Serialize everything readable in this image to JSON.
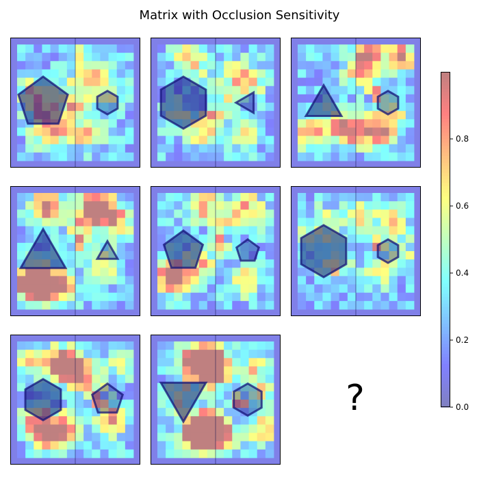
{
  "title": "Matrix with Occlusion Sensitivity",
  "chart_data": {
    "type": "heatmap",
    "title": "Matrix with Occlusion Sensitivity",
    "layout": "3x3 matrix grid, last cell missing",
    "grid_size": 14,
    "colormap": "jet",
    "overlay_alpha": 0.5,
    "colorbar": {
      "min": 0.0,
      "max": 1.0,
      "ticks": [
        0.0,
        0.2,
        0.4,
        0.6,
        0.8
      ],
      "tick_labels": [
        "0.0",
        "0.2",
        "0.4",
        "0.6",
        "0.8"
      ],
      "placement": "right"
    },
    "panels": [
      {
        "name": "panel-1",
        "left_shape": {
          "type": "pentagon",
          "size": "large"
        },
        "right_shape": {
          "type": "hexagon",
          "size": "small"
        },
        "hotspots": [
          [
            6,
            5,
            0.32
          ],
          [
            2,
            6,
            0.3
          ],
          [
            9,
            5,
            0.28
          ],
          [
            3,
            8,
            0.45
          ],
          [
            8,
            10,
            0.5
          ],
          [
            7,
            1,
            0.22
          ],
          [
            5,
            10,
            0.28
          ],
          [
            9,
            3,
            0.26
          ],
          [
            1,
            5,
            0.2
          ],
          [
            3,
            10,
            0.38
          ],
          [
            11,
            5,
            0.22
          ]
        ],
        "peaks": [
          [
            6,
            7,
            0.95
          ],
          [
            7,
            7,
            0.78
          ],
          [
            6,
            8,
            0.7
          ]
        ]
      },
      {
        "name": "panel-2",
        "left_shape": {
          "type": "hexagon",
          "size": "large"
        },
        "right_shape": {
          "type": "triangle-left",
          "size": "small"
        },
        "hotspots": [
          [
            4,
            2,
            0.32
          ],
          [
            9,
            3,
            0.4
          ],
          [
            11,
            4,
            0.35
          ],
          [
            5,
            10,
            0.45
          ],
          [
            10,
            10,
            0.35
          ],
          [
            8,
            6,
            0.28
          ],
          [
            2,
            8,
            0.28
          ],
          [
            3,
            1,
            0.25
          ]
        ],
        "peaks": [
          [
            6,
            8,
            0.92
          ],
          [
            7,
            8,
            0.72
          ],
          [
            5,
            8,
            0.65
          ]
        ]
      },
      {
        "name": "panel-3",
        "left_shape": {
          "type": "triangle-up",
          "size": "medium"
        },
        "right_shape": {
          "type": "hexagon",
          "size": "small"
        },
        "hotspots": [
          [
            8,
            1,
            0.72
          ],
          [
            12,
            1,
            0.7
          ],
          [
            7,
            3,
            0.45
          ],
          [
            9,
            10,
            0.78
          ],
          [
            6,
            10,
            0.65
          ],
          [
            1,
            10,
            0.55
          ],
          [
            4,
            9,
            0.45
          ],
          [
            11,
            8,
            0.38
          ]
        ],
        "peaks": [
          [
            9,
            5,
            0.9
          ],
          [
            8,
            5,
            0.62
          ],
          [
            9,
            6,
            0.8
          ],
          [
            10,
            6,
            0.5
          ]
        ]
      },
      {
        "name": "panel-4",
        "left_shape": {
          "type": "triangle-up",
          "size": "large"
        },
        "right_shape": {
          "type": "triangle-up",
          "size": "small"
        },
        "hotspots": [
          [
            3,
            1,
            0.78
          ],
          [
            9,
            1,
            0.75
          ],
          [
            10,
            2,
            0.6
          ],
          [
            1,
            10,
            0.85
          ],
          [
            3,
            10,
            0.75
          ],
          [
            2,
            11,
            0.7
          ],
          [
            5,
            11,
            0.5
          ],
          [
            7,
            3,
            0.45
          ],
          [
            12,
            3,
            0.4
          ],
          [
            10,
            8,
            0.35
          ]
        ],
        "peaks": [
          [
            7,
            5,
            0.95
          ],
          [
            7,
            6,
            0.75
          ],
          [
            8,
            5,
            0.55
          ]
        ]
      },
      {
        "name": "panel-5",
        "left_shape": {
          "type": "pentagon",
          "size": "medium"
        },
        "right_shape": {
          "type": "pentagon",
          "size": "small"
        },
        "hotspots": [
          [
            5,
            1,
            0.55
          ],
          [
            10,
            1,
            0.45
          ],
          [
            8,
            3,
            0.3
          ],
          [
            1,
            9,
            0.65
          ],
          [
            2,
            10,
            0.55
          ],
          [
            5,
            8,
            0.45
          ],
          [
            10,
            10,
            0.45
          ],
          [
            12,
            3,
            0.3
          ]
        ],
        "peaks": [
          [
            7,
            5,
            0.88
          ],
          [
            7,
            6,
            0.72
          ],
          [
            8,
            6,
            0.55
          ]
        ]
      },
      {
        "name": "panel-6",
        "left_shape": {
          "type": "hexagon",
          "size": "large"
        },
        "right_shape": {
          "type": "hexagon",
          "size": "small"
        },
        "hotspots": [
          [
            3,
            3,
            0.35
          ],
          [
            7,
            2,
            0.4
          ],
          [
            11,
            3,
            0.45
          ],
          [
            4,
            8,
            0.45
          ],
          [
            9,
            9,
            0.35
          ],
          [
            12,
            7,
            0.3
          ],
          [
            1,
            5,
            0.25
          ]
        ],
        "peaks": [
          [
            9,
            6,
            0.95
          ],
          [
            9,
            5,
            0.65
          ],
          [
            10,
            6,
            0.6
          ]
        ]
      },
      {
        "name": "panel-7",
        "left_shape": {
          "type": "hexagon",
          "size": "medium"
        },
        "right_shape": {
          "type": "pentagon",
          "size": "medium"
        },
        "hotspots": [
          [
            5,
            2,
            0.8
          ],
          [
            6,
            3,
            0.7
          ],
          [
            1,
            2,
            0.45
          ],
          [
            2,
            9,
            0.65
          ],
          [
            5,
            10,
            0.62
          ],
          [
            3,
            11,
            0.55
          ],
          [
            11,
            9,
            0.55
          ],
          [
            12,
            2,
            0.35
          ],
          [
            8,
            4,
            0.55
          ]
        ],
        "peaks": [
          [
            9,
            6,
            0.95
          ],
          [
            9,
            7,
            0.82
          ],
          [
            10,
            7,
            0.75
          ],
          [
            8,
            6,
            0.55
          ],
          [
            10,
            5,
            0.6
          ]
        ]
      },
      {
        "name": "panel-8",
        "left_shape": {
          "type": "triangle-down",
          "size": "large"
        },
        "right_shape": {
          "type": "hexagon",
          "size": "medium"
        },
        "hotspots": [
          [
            5,
            2,
            0.85
          ],
          [
            6,
            2,
            0.82
          ],
          [
            6,
            3,
            0.78
          ],
          [
            4,
            2,
            0.7
          ],
          [
            5,
            10,
            0.9
          ],
          [
            6,
            10,
            0.85
          ],
          [
            4,
            11,
            0.75
          ],
          [
            7,
            11,
            0.6
          ],
          [
            12,
            10,
            0.45
          ],
          [
            2,
            6,
            0.4
          ],
          [
            11,
            3,
            0.4
          ],
          [
            12,
            6,
            0.35
          ]
        ],
        "peaks": [
          [
            9,
            7,
            0.92
          ],
          [
            10,
            7,
            0.8
          ],
          [
            9,
            6,
            0.6
          ]
        ]
      }
    ],
    "missing_panel_label": "?"
  }
}
